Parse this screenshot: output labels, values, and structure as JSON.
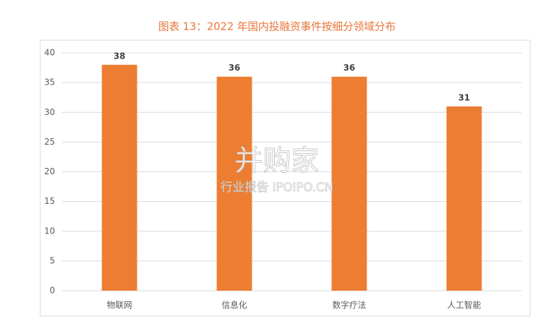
{
  "chart_data": {
    "type": "bar",
    "title": "图表 13：2022 年国内投融资事件按细分领域分布",
    "categories": [
      "物联网",
      "信息化",
      "数字疗法",
      "人工智能"
    ],
    "values": [
      38,
      36,
      36,
      31
    ],
    "color": "#ed7d31",
    "ylim": [
      0,
      40
    ],
    "yticks": [
      0,
      5,
      10,
      15,
      20,
      25,
      30,
      35,
      40
    ],
    "grid": true,
    "watermark": {
      "title": "并购家",
      "subtitle": "行业报告 IPOIPO.CN"
    }
  }
}
